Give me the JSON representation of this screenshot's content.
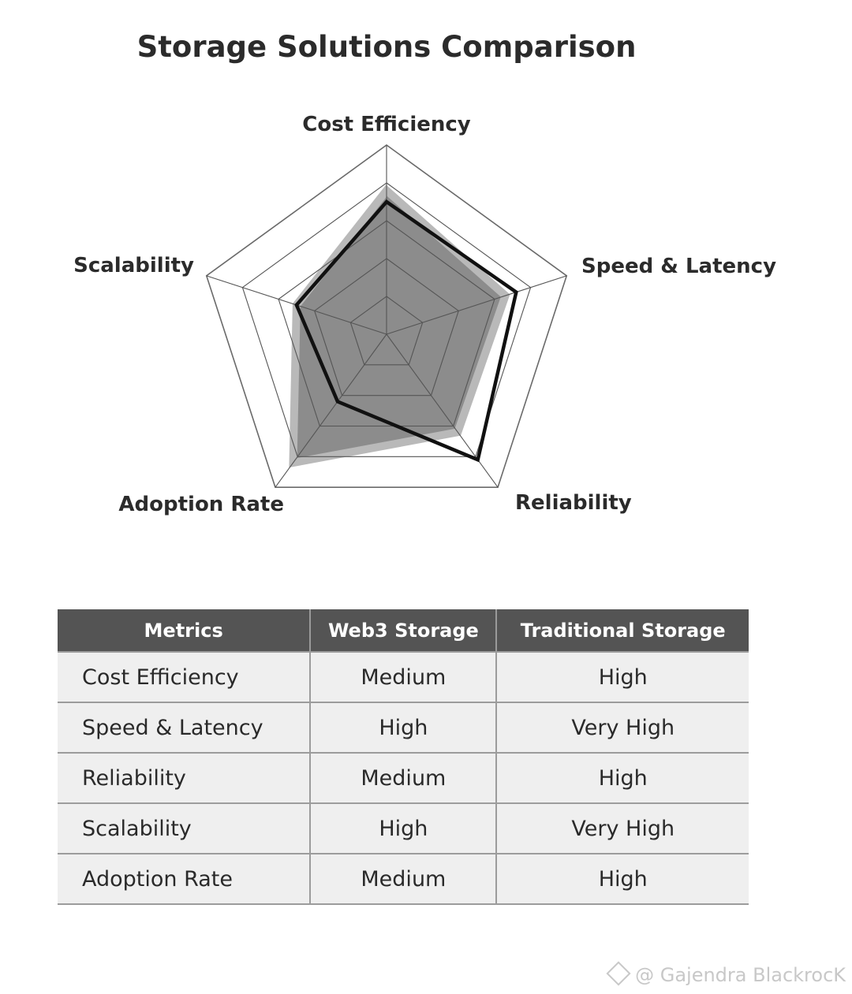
{
  "chart_data": {
    "type": "radar",
    "title": "Storage Solutions Comparison",
    "axes": [
      "Cost Efficiency",
      "Speed & Latency",
      "Reliability",
      "Adoption Rate",
      "Scalability"
    ],
    "scale": [
      0,
      5
    ],
    "grid_levels": 5,
    "series": [
      {
        "values": [
          3.8,
          3.3,
          3.2,
          4.2,
          2.5
        ],
        "style": "filled",
        "fill": "#8c8c8c",
        "outline": "#b9b9b9"
      },
      {
        "values": [
          3.5,
          3.6,
          4.1,
          2.2,
          2.5
        ],
        "style": "outline",
        "stroke": "#111111"
      }
    ]
  },
  "table": {
    "headers": [
      "Metrics",
      "Web3 Storage",
      "Traditional Storage"
    ],
    "rows": [
      [
        "Cost Efficiency",
        "Medium",
        "High"
      ],
      [
        "Speed & Latency",
        "High",
        "Very High"
      ],
      [
        "Reliability",
        "Medium",
        "High"
      ],
      [
        "Scalability",
        "High",
        "Very High"
      ],
      [
        "Adoption Rate",
        "Medium",
        "High"
      ]
    ]
  },
  "watermark": {
    "text": "@ Gajendra BlackrocK",
    "icon": "diamond-logo-icon"
  },
  "colors": {
    "header_bg": "#545454",
    "row_bg": "#efefef",
    "grid": "#5a5a5a"
  }
}
